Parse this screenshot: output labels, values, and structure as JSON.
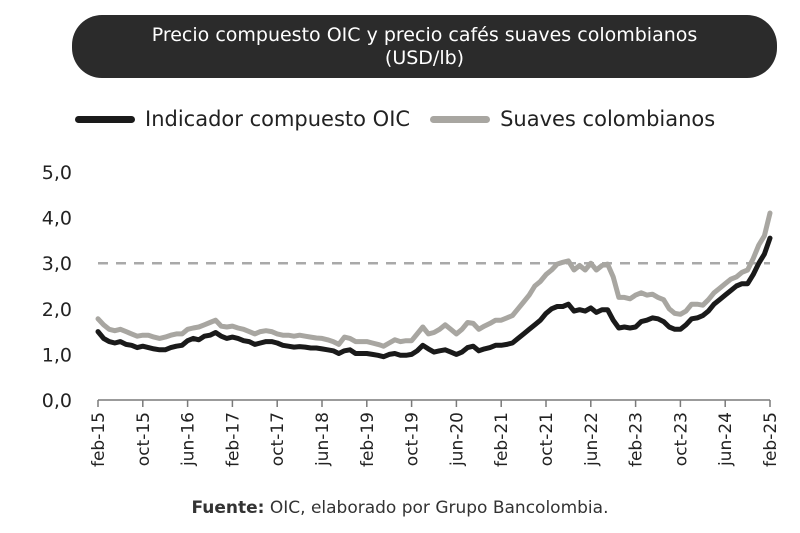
{
  "title": {
    "line1": "Precio compuesto OIC y precio cafés suaves colombianos",
    "line2": "(USD/lb)"
  },
  "source": {
    "label": "Fuente:",
    "text": " OIC, elaborado por Grupo Bancolombia."
  },
  "colors": {
    "title_bg": "#2b2b2b",
    "oic": "#1a1a1a",
    "suaves": "#a8a6a1",
    "reference": "#a9a9a9",
    "axis": "#7a7a7a"
  },
  "chart_data": {
    "type": "line",
    "title": "Precio compuesto OIC y precio cafés suaves colombianos (USD/lb)",
    "xlabel": "",
    "ylabel": "",
    "ylim": [
      0,
      5
    ],
    "yticks": [
      "0,0",
      "1,0",
      "2,0",
      "3,0",
      "4,0",
      "5,0"
    ],
    "ytick_values": [
      0,
      1,
      2,
      3,
      4,
      5
    ],
    "x_range": [
      "2015-02",
      "2025-02"
    ],
    "xticks": [
      "feb-15",
      "oct-15",
      "jun-16",
      "feb-17",
      "oct-17",
      "jun-18",
      "feb-19",
      "oct-19",
      "jun-20",
      "feb-21",
      "oct-21",
      "jun-22",
      "feb-23",
      "oct-23",
      "jun-24",
      "feb-25"
    ],
    "reference_line": {
      "y": 3.0,
      "style": "dashed"
    },
    "legend_position": "top",
    "series": [
      {
        "name": "Indicador compuesto OIC",
        "color": "#1a1a1a",
        "points": [
          [
            "2015-02",
            1.5
          ],
          [
            "2015-03",
            1.35
          ],
          [
            "2015-04",
            1.28
          ],
          [
            "2015-05",
            1.25
          ],
          [
            "2015-06",
            1.28
          ],
          [
            "2015-07",
            1.22
          ],
          [
            "2015-08",
            1.2
          ],
          [
            "2015-09",
            1.15
          ],
          [
            "2015-10",
            1.18
          ],
          [
            "2015-11",
            1.15
          ],
          [
            "2015-12",
            1.12
          ],
          [
            "2016-01",
            1.1
          ],
          [
            "2016-02",
            1.1
          ],
          [
            "2016-03",
            1.15
          ],
          [
            "2016-04",
            1.18
          ],
          [
            "2016-05",
            1.2
          ],
          [
            "2016-06",
            1.3
          ],
          [
            "2016-07",
            1.35
          ],
          [
            "2016-08",
            1.32
          ],
          [
            "2016-09",
            1.4
          ],
          [
            "2016-10",
            1.42
          ],
          [
            "2016-11",
            1.48
          ],
          [
            "2016-12",
            1.4
          ],
          [
            "2017-01",
            1.35
          ],
          [
            "2017-02",
            1.38
          ],
          [
            "2017-03",
            1.35
          ],
          [
            "2017-04",
            1.3
          ],
          [
            "2017-05",
            1.28
          ],
          [
            "2017-06",
            1.22
          ],
          [
            "2017-07",
            1.25
          ],
          [
            "2017-08",
            1.28
          ],
          [
            "2017-09",
            1.28
          ],
          [
            "2017-10",
            1.25
          ],
          [
            "2017-11",
            1.2
          ],
          [
            "2017-12",
            1.18
          ],
          [
            "2018-01",
            1.16
          ],
          [
            "2018-02",
            1.17
          ],
          [
            "2018-03",
            1.16
          ],
          [
            "2018-04",
            1.14
          ],
          [
            "2018-05",
            1.14
          ],
          [
            "2018-06",
            1.12
          ],
          [
            "2018-07",
            1.1
          ],
          [
            "2018-08",
            1.08
          ],
          [
            "2018-09",
            1.02
          ],
          [
            "2018-10",
            1.08
          ],
          [
            "2018-11",
            1.1
          ],
          [
            "2018-12",
            1.02
          ],
          [
            "2019-01",
            1.02
          ],
          [
            "2019-02",
            1.02
          ],
          [
            "2019-03",
            1.0
          ],
          [
            "2019-04",
            0.98
          ],
          [
            "2019-05",
            0.95
          ],
          [
            "2019-06",
            1.0
          ],
          [
            "2019-07",
            1.02
          ],
          [
            "2019-08",
            0.98
          ],
          [
            "2019-09",
            0.98
          ],
          [
            "2019-10",
            1.0
          ],
          [
            "2019-11",
            1.08
          ],
          [
            "2019-12",
            1.2
          ],
          [
            "2020-01",
            1.12
          ],
          [
            "2020-02",
            1.05
          ],
          [
            "2020-03",
            1.08
          ],
          [
            "2020-04",
            1.1
          ],
          [
            "2020-05",
            1.05
          ],
          [
            "2020-06",
            1.0
          ],
          [
            "2020-07",
            1.05
          ],
          [
            "2020-08",
            1.15
          ],
          [
            "2020-09",
            1.18
          ],
          [
            "2020-10",
            1.08
          ],
          [
            "2020-11",
            1.12
          ],
          [
            "2020-12",
            1.15
          ],
          [
            "2021-01",
            1.2
          ],
          [
            "2021-02",
            1.2
          ],
          [
            "2021-03",
            1.22
          ],
          [
            "2021-04",
            1.25
          ],
          [
            "2021-05",
            1.35
          ],
          [
            "2021-06",
            1.45
          ],
          [
            "2021-07",
            1.55
          ],
          [
            "2021-08",
            1.65
          ],
          [
            "2021-09",
            1.75
          ],
          [
            "2021-10",
            1.9
          ],
          [
            "2021-11",
            2.0
          ],
          [
            "2021-12",
            2.05
          ],
          [
            "2022-01",
            2.05
          ],
          [
            "2022-02",
            2.1
          ],
          [
            "2022-03",
            1.95
          ],
          [
            "2022-04",
            1.98
          ],
          [
            "2022-05",
            1.95
          ],
          [
            "2022-06",
            2.02
          ],
          [
            "2022-07",
            1.92
          ],
          [
            "2022-08",
            1.98
          ],
          [
            "2022-09",
            1.98
          ],
          [
            "2022-10",
            1.75
          ],
          [
            "2022-11",
            1.58
          ],
          [
            "2022-12",
            1.6
          ],
          [
            "2023-01",
            1.58
          ],
          [
            "2023-02",
            1.6
          ],
          [
            "2023-03",
            1.72
          ],
          [
            "2023-04",
            1.75
          ],
          [
            "2023-05",
            1.8
          ],
          [
            "2023-06",
            1.78
          ],
          [
            "2023-07",
            1.72
          ],
          [
            "2023-08",
            1.6
          ],
          [
            "2023-09",
            1.55
          ],
          [
            "2023-10",
            1.55
          ],
          [
            "2023-11",
            1.65
          ],
          [
            "2023-12",
            1.78
          ],
          [
            "2024-01",
            1.8
          ],
          [
            "2024-02",
            1.85
          ],
          [
            "2024-03",
            1.95
          ],
          [
            "2024-04",
            2.1
          ],
          [
            "2024-05",
            2.2
          ],
          [
            "2024-06",
            2.3
          ],
          [
            "2024-07",
            2.4
          ],
          [
            "2024-08",
            2.5
          ],
          [
            "2024-09",
            2.55
          ],
          [
            "2024-10",
            2.55
          ],
          [
            "2024-11",
            2.75
          ],
          [
            "2024-12",
            3.0
          ],
          [
            "2025-01",
            3.2
          ],
          [
            "2025-02",
            3.55
          ]
        ]
      },
      {
        "name": "Suaves colombianos",
        "color": "#a8a6a1",
        "points": [
          [
            "2015-02",
            1.78
          ],
          [
            "2015-03",
            1.65
          ],
          [
            "2015-04",
            1.55
          ],
          [
            "2015-05",
            1.52
          ],
          [
            "2015-06",
            1.55
          ],
          [
            "2015-07",
            1.5
          ],
          [
            "2015-08",
            1.45
          ],
          [
            "2015-09",
            1.4
          ],
          [
            "2015-10",
            1.42
          ],
          [
            "2015-11",
            1.42
          ],
          [
            "2015-12",
            1.38
          ],
          [
            "2016-01",
            1.35
          ],
          [
            "2016-02",
            1.38
          ],
          [
            "2016-03",
            1.42
          ],
          [
            "2016-04",
            1.45
          ],
          [
            "2016-05",
            1.45
          ],
          [
            "2016-06",
            1.55
          ],
          [
            "2016-07",
            1.58
          ],
          [
            "2016-08",
            1.6
          ],
          [
            "2016-09",
            1.65
          ],
          [
            "2016-10",
            1.7
          ],
          [
            "2016-11",
            1.75
          ],
          [
            "2016-12",
            1.62
          ],
          [
            "2017-01",
            1.6
          ],
          [
            "2017-02",
            1.62
          ],
          [
            "2017-03",
            1.58
          ],
          [
            "2017-04",
            1.55
          ],
          [
            "2017-05",
            1.5
          ],
          [
            "2017-06",
            1.45
          ],
          [
            "2017-07",
            1.5
          ],
          [
            "2017-08",
            1.52
          ],
          [
            "2017-09",
            1.5
          ],
          [
            "2017-10",
            1.45
          ],
          [
            "2017-11",
            1.42
          ],
          [
            "2017-12",
            1.42
          ],
          [
            "2018-01",
            1.4
          ],
          [
            "2018-02",
            1.42
          ],
          [
            "2018-03",
            1.4
          ],
          [
            "2018-04",
            1.38
          ],
          [
            "2018-05",
            1.36
          ],
          [
            "2018-06",
            1.35
          ],
          [
            "2018-07",
            1.32
          ],
          [
            "2018-08",
            1.28
          ],
          [
            "2018-09",
            1.22
          ],
          [
            "2018-10",
            1.38
          ],
          [
            "2018-11",
            1.35
          ],
          [
            "2018-12",
            1.28
          ],
          [
            "2019-01",
            1.28
          ],
          [
            "2019-02",
            1.28
          ],
          [
            "2019-03",
            1.25
          ],
          [
            "2019-04",
            1.22
          ],
          [
            "2019-05",
            1.18
          ],
          [
            "2019-06",
            1.25
          ],
          [
            "2019-07",
            1.32
          ],
          [
            "2019-08",
            1.28
          ],
          [
            "2019-09",
            1.3
          ],
          [
            "2019-10",
            1.3
          ],
          [
            "2019-11",
            1.45
          ],
          [
            "2019-12",
            1.6
          ],
          [
            "2020-01",
            1.45
          ],
          [
            "2020-02",
            1.48
          ],
          [
            "2020-03",
            1.55
          ],
          [
            "2020-04",
            1.65
          ],
          [
            "2020-05",
            1.55
          ],
          [
            "2020-06",
            1.45
          ],
          [
            "2020-07",
            1.55
          ],
          [
            "2020-08",
            1.7
          ],
          [
            "2020-09",
            1.68
          ],
          [
            "2020-10",
            1.55
          ],
          [
            "2020-11",
            1.62
          ],
          [
            "2020-12",
            1.68
          ],
          [
            "2021-01",
            1.75
          ],
          [
            "2021-02",
            1.75
          ],
          [
            "2021-03",
            1.8
          ],
          [
            "2021-04",
            1.85
          ],
          [
            "2021-05",
            2.0
          ],
          [
            "2021-06",
            2.15
          ],
          [
            "2021-07",
            2.3
          ],
          [
            "2021-08",
            2.5
          ],
          [
            "2021-09",
            2.6
          ],
          [
            "2021-10",
            2.75
          ],
          [
            "2021-11",
            2.85
          ],
          [
            "2021-12",
            2.98
          ],
          [
            "2022-01",
            3.02
          ],
          [
            "2022-02",
            3.05
          ],
          [
            "2022-03",
            2.85
          ],
          [
            "2022-04",
            2.95
          ],
          [
            "2022-05",
            2.85
          ],
          [
            "2022-06",
            3.0
          ],
          [
            "2022-07",
            2.85
          ],
          [
            "2022-08",
            2.95
          ],
          [
            "2022-09",
            2.98
          ],
          [
            "2022-10",
            2.7
          ],
          [
            "2022-11",
            2.25
          ],
          [
            "2022-12",
            2.25
          ],
          [
            "2023-01",
            2.22
          ],
          [
            "2023-02",
            2.3
          ],
          [
            "2023-03",
            2.35
          ],
          [
            "2023-04",
            2.3
          ],
          [
            "2023-05",
            2.32
          ],
          [
            "2023-06",
            2.25
          ],
          [
            "2023-07",
            2.2
          ],
          [
            "2023-08",
            2.0
          ],
          [
            "2023-09",
            1.9
          ],
          [
            "2023-10",
            1.88
          ],
          [
            "2023-11",
            1.95
          ],
          [
            "2023-12",
            2.1
          ],
          [
            "2024-01",
            2.1
          ],
          [
            "2024-02",
            2.08
          ],
          [
            "2024-03",
            2.2
          ],
          [
            "2024-04",
            2.35
          ],
          [
            "2024-05",
            2.45
          ],
          [
            "2024-06",
            2.55
          ],
          [
            "2024-07",
            2.65
          ],
          [
            "2024-08",
            2.7
          ],
          [
            "2024-09",
            2.8
          ],
          [
            "2024-10",
            2.85
          ],
          [
            "2024-11",
            3.1
          ],
          [
            "2024-12",
            3.4
          ],
          [
            "2025-01",
            3.6
          ],
          [
            "2025-02",
            4.1
          ]
        ]
      }
    ]
  }
}
